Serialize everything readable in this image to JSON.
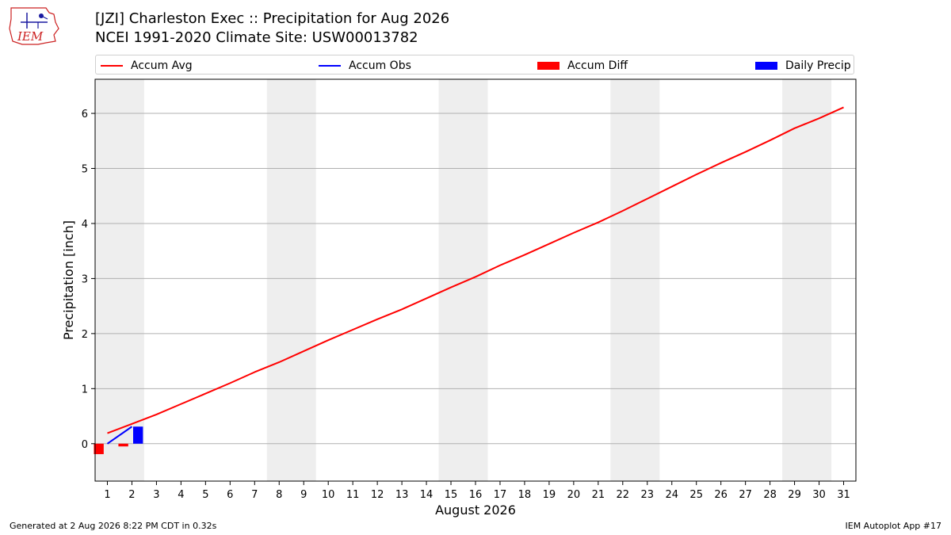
{
  "header": {
    "title": "[JZI] Charleston Exec :: Precipitation for Aug 2026",
    "subtitle": "NCEI 1991-2020 Climate Site: USW00013782"
  },
  "logo": {
    "text": "IEM"
  },
  "legend": {
    "items": [
      {
        "label": "Accum Avg",
        "kind": "line",
        "color": "#ff0000"
      },
      {
        "label": "Accum Obs",
        "kind": "line",
        "color": "#0000ff"
      },
      {
        "label": "Accum Diff",
        "kind": "patch",
        "color": "#ff0000"
      },
      {
        "label": "Daily Precip",
        "kind": "patch",
        "color": "#0000ff"
      }
    ]
  },
  "footer": {
    "left": "Generated at 2 Aug 2026 8:22 PM CDT in 0.32s",
    "right": "IEM Autoplot App #17"
  },
  "chart_data": {
    "type": "line",
    "xlabel": "August 2026",
    "ylabel": "Precipitation [inch]",
    "x": [
      1,
      2,
      3,
      4,
      5,
      6,
      7,
      8,
      9,
      10,
      11,
      12,
      13,
      14,
      15,
      16,
      17,
      18,
      19,
      20,
      21,
      22,
      23,
      24,
      25,
      26,
      27,
      28,
      29,
      30,
      31
    ],
    "x_tick_labels": [
      "1",
      "2",
      "3",
      "4",
      "5",
      "6",
      "7",
      "8",
      "9",
      "10",
      "11",
      "12",
      "13",
      "14",
      "15",
      "16",
      "17",
      "18",
      "19",
      "20",
      "21",
      "22",
      "23",
      "24",
      "25",
      "26",
      "27",
      "28",
      "29",
      "30",
      "31"
    ],
    "ylim": [
      -0.68,
      6.62
    ],
    "y_ticks": [
      0,
      1,
      2,
      3,
      4,
      5,
      6
    ],
    "y_tick_labels": [
      "0",
      "1",
      "2",
      "3",
      "4",
      "5",
      "6"
    ],
    "grid": "horizontal",
    "weekend_shading": [
      [
        1,
        2
      ],
      [
        8,
        9
      ],
      [
        15,
        16
      ],
      [
        22,
        23
      ],
      [
        29,
        30
      ]
    ],
    "series": [
      {
        "name": "Accum Avg",
        "kind": "line",
        "color": "#ff0000",
        "x": [
          1,
          2,
          3,
          4,
          5,
          6,
          7,
          8,
          9,
          10,
          11,
          12,
          13,
          14,
          15,
          16,
          17,
          18,
          19,
          20,
          21,
          22,
          23,
          24,
          25,
          26,
          27,
          28,
          29,
          30,
          31
        ],
        "values": [
          0.19,
          0.36,
          0.53,
          0.72,
          0.91,
          1.1,
          1.3,
          1.48,
          1.68,
          1.88,
          2.07,
          2.26,
          2.44,
          2.64,
          2.84,
          3.03,
          3.24,
          3.43,
          3.63,
          3.83,
          4.02,
          4.23,
          4.45,
          4.67,
          4.89,
          5.1,
          5.3,
          5.51,
          5.73,
          5.91,
          6.11
        ]
      },
      {
        "name": "Accum Obs",
        "kind": "line",
        "color": "#0000ff",
        "x": [
          1,
          2
        ],
        "values": [
          0.0,
          0.31
        ]
      },
      {
        "name": "Accum Diff",
        "kind": "bar",
        "color": "#ff0000",
        "offset": -0.35,
        "width": 0.4,
        "x": [
          1,
          2
        ],
        "values": [
          -0.19,
          -0.05
        ]
      },
      {
        "name": "Daily Precip",
        "kind": "bar",
        "color": "#0000ff",
        "offset": 0.25,
        "width": 0.4,
        "x": [
          1,
          2
        ],
        "values": [
          0.0,
          0.31
        ]
      }
    ]
  }
}
